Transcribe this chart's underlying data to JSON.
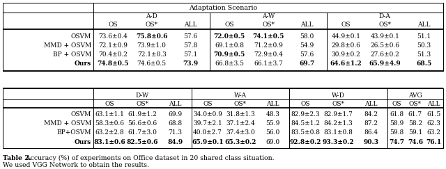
{
  "title": "Adaptation Scenario",
  "caption_line1": "Table 2. Accuracy (%) of experiments on Office dataset in 20 shared class situation.",
  "caption_line2": "We used VGG Network to obtain the results.",
  "top_headers": [
    "A-D",
    "A-W",
    "D-A"
  ],
  "bottom_headers": [
    "D-W",
    "W-A",
    "W-D",
    "AVG"
  ],
  "sub_headers": [
    "OS",
    "OS*",
    "ALL"
  ],
  "row_labels_top": [
    "OSVM",
    "MMD + OSVM",
    "BP + OSVM",
    "Ours"
  ],
  "row_labels_bot": [
    "OSVM",
    "MMD + OSVM",
    "BP+OSVM",
    "Ours"
  ],
  "top_data": [
    [
      "73.6±0.4",
      "75.8±0.6",
      "57.6",
      "72.0±0.5",
      "74.1±0.5",
      "58.0",
      "44.9±0.1",
      "43.9±0.1",
      "51.1"
    ],
    [
      "72.1±0.9",
      "73.9±1.0",
      "57.8",
      "69.1±0.8",
      "71.2±0.9",
      "54.9",
      "29.8±0.6",
      "26.5±0.6",
      "50.3"
    ],
    [
      "70.4±0.2",
      "72.1±0.3",
      "57.1",
      "70.9±0.5",
      "72.9±0.4",
      "57.6",
      "30.9±0.2",
      "27.6±0.2",
      "51.3"
    ],
    [
      "74.8±0.5",
      "74.6±0.5",
      "73.9",
      "66.8±3.5",
      "66.1±3.7",
      "69.7",
      "64.6±1.2",
      "65.9±4.9",
      "68.5"
    ]
  ],
  "bottom_data": [
    [
      "63.1±1.1",
      "61.9±1.2",
      "69.9",
      "34.0±0.9",
      "31.8±1.3",
      "48.3",
      "82.9±2.3",
      "82.9±1.7",
      "84.2",
      "61.8",
      "61.7",
      "61.5"
    ],
    [
      "58.3±0.6",
      "56.6±0.6",
      "68.8",
      "39.7±2.1",
      "37.1±2.4",
      "55.9",
      "84.5±1.2",
      "84.2±1.3",
      "87.2",
      "58.9",
      "58.2",
      "62.3"
    ],
    [
      "63.2±2.8",
      "61.7±3.0",
      "71.3",
      "40.0±2.7",
      "37.4±3.0",
      "56.0",
      "83.5±0.8",
      "83.1±0.8",
      "86.4",
      "59.8",
      "59.1",
      "63.2"
    ],
    [
      "83.1±0.6",
      "82.5±0.6",
      "84.9",
      "65.9±0.1",
      "65.3±0.2",
      "69.0",
      "92.8±0.2",
      "93.3±0.2",
      "90.3",
      "74.7",
      "74.6",
      "76.1"
    ]
  ],
  "bold_top": [
    [
      [
        false,
        true,
        false
      ],
      [
        true,
        true,
        false
      ],
      [
        false,
        false,
        false
      ]
    ],
    [
      [
        false,
        false,
        false
      ],
      [
        false,
        false,
        false
      ],
      [
        false,
        false,
        false
      ]
    ],
    [
      [
        false,
        false,
        false
      ],
      [
        true,
        false,
        false
      ],
      [
        false,
        false,
        false
      ]
    ],
    [
      [
        true,
        false,
        true
      ],
      [
        false,
        false,
        true
      ],
      [
        true,
        true,
        true
      ]
    ]
  ],
  "bold_bottom": [
    [
      [
        false,
        false,
        false
      ],
      [
        false,
        false,
        false
      ],
      [
        false,
        false,
        false
      ],
      [
        false,
        false,
        false
      ]
    ],
    [
      [
        false,
        false,
        false
      ],
      [
        false,
        false,
        false
      ],
      [
        false,
        false,
        false
      ],
      [
        false,
        false,
        false
      ]
    ],
    [
      [
        false,
        false,
        false
      ],
      [
        false,
        false,
        false
      ],
      [
        false,
        false,
        false
      ],
      [
        false,
        false,
        false
      ]
    ],
    [
      [
        true,
        true,
        true
      ],
      [
        true,
        true,
        false
      ],
      [
        true,
        true,
        true
      ],
      [
        true,
        true,
        true
      ]
    ]
  ],
  "fs": 6.5
}
